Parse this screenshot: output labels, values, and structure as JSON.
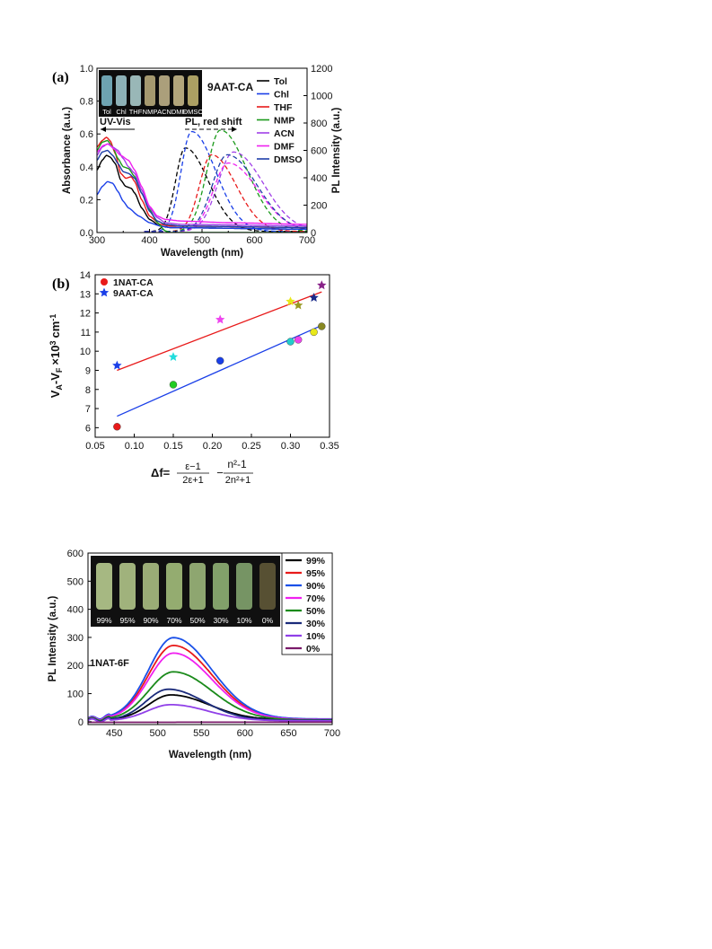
{
  "chart_data": [
    {
      "id": "a",
      "panel_label": "(a)",
      "type": "line",
      "annotation": "9AAT-CA",
      "uvvis_label": "UV-Vis",
      "pl_label": "PL, red shift",
      "xlabel": "Wavelength (nm)",
      "ylabel": "Absorbance (a.u.)",
      "y2label": "PL Intensity (a.u.)",
      "xlim": [
        300,
        700
      ],
      "ylim": [
        0,
        1.0
      ],
      "y2lim": [
        0,
        1200
      ],
      "xticks": [
        "300",
        "400",
        "500",
        "600",
        "700"
      ],
      "yticks": [
        "0.0",
        "0.2",
        "0.4",
        "0.6",
        "0.8",
        "1.0"
      ],
      "y2ticks": [
        "0",
        "200",
        "400",
        "600",
        "800",
        "1000",
        "1200"
      ],
      "inset_labels": [
        "Tol",
        "Chl",
        "THF",
        "NMP",
        "ACN",
        "DMF",
        "DMSO"
      ],
      "series": [
        {
          "name": "Tol",
          "color": "#000000",
          "abs": [
            [
              300,
              0.38
            ],
            [
              310,
              0.44
            ],
            [
              318,
              0.47
            ],
            [
              325,
              0.46
            ],
            [
              335,
              0.42
            ],
            [
              345,
              0.32
            ],
            [
              355,
              0.28
            ],
            [
              365,
              0.27
            ],
            [
              372,
              0.24
            ],
            [
              385,
              0.15
            ],
            [
              400,
              0.08
            ],
            [
              420,
              0.04
            ],
            [
              440,
              0.03
            ],
            [
              700,
              0.02
            ]
          ],
          "pl_peak": [
            468,
            610
          ],
          "pl_w": [
            26,
            62
          ],
          "pl_start": 400
        },
        {
          "name": "Chl",
          "color": "#1a3fe8",
          "abs": [
            [
              300,
              0.23
            ],
            [
              310,
              0.28
            ],
            [
              320,
              0.31
            ],
            [
              330,
              0.3
            ],
            [
              340,
              0.25
            ],
            [
              350,
              0.19
            ],
            [
              360,
              0.15
            ],
            [
              380,
              0.1
            ],
            [
              400,
              0.06
            ],
            [
              420,
              0.04
            ],
            [
              440,
              0.03
            ],
            [
              700,
              0.02
            ]
          ],
          "pl_peak": [
            480,
            730
          ],
          "pl_w": [
            28,
            65
          ],
          "pl_start": 400
        },
        {
          "name": "THF",
          "color": "#e81a1a",
          "abs": [
            [
              300,
              0.52
            ],
            [
              310,
              0.56
            ],
            [
              318,
              0.58
            ],
            [
              325,
              0.56
            ],
            [
              335,
              0.48
            ],
            [
              345,
              0.36
            ],
            [
              355,
              0.33
            ],
            [
              365,
              0.34
            ],
            [
              372,
              0.31
            ],
            [
              385,
              0.2
            ],
            [
              400,
              0.1
            ],
            [
              420,
              0.05
            ],
            [
              440,
              0.04
            ],
            [
              700,
              0.03
            ]
          ],
          "pl_peak": [
            518,
            560
          ],
          "pl_w": [
            32,
            66
          ],
          "pl_start": 405
        },
        {
          "name": "NMP",
          "color": "#1a9a1a",
          "abs": [
            [
              300,
              0.5
            ],
            [
              310,
              0.55
            ],
            [
              320,
              0.56
            ],
            [
              330,
              0.52
            ],
            [
              340,
              0.45
            ],
            [
              350,
              0.4
            ],
            [
              360,
              0.39
            ],
            [
              372,
              0.34
            ],
            [
              385,
              0.24
            ],
            [
              400,
              0.14
            ],
            [
              415,
              0.06
            ],
            [
              430,
              0.01
            ],
            [
              440,
              0.0
            ]
          ],
          "pl_peak": [
            535,
            740
          ],
          "pl_w": [
            36,
            72
          ],
          "pl_start": 420
        },
        {
          "name": "ACN",
          "color": "#a040e8",
          "abs": [
            [
              300,
              0.47
            ],
            [
              310,
              0.52
            ],
            [
              320,
              0.54
            ],
            [
              330,
              0.52
            ],
            [
              340,
              0.5
            ],
            [
              350,
              0.45
            ],
            [
              360,
              0.4
            ],
            [
              372,
              0.36
            ],
            [
              385,
              0.26
            ],
            [
              400,
              0.15
            ],
            [
              415,
              0.09
            ],
            [
              430,
              0.06
            ],
            [
              460,
              0.05
            ],
            [
              700,
              0.04
            ]
          ],
          "pl_peak": [
            560,
            580
          ],
          "pl_w": [
            42,
            80
          ],
          "pl_start": 415
        },
        {
          "name": "DMF",
          "color": "#f020f0",
          "abs": [
            [
              300,
              0.49
            ],
            [
              312,
              0.53
            ],
            [
              322,
              0.54
            ],
            [
              332,
              0.51
            ],
            [
              345,
              0.47
            ],
            [
              360,
              0.44
            ],
            [
              372,
              0.38
            ],
            [
              385,
              0.28
            ],
            [
              400,
              0.16
            ],
            [
              415,
              0.1
            ],
            [
              430,
              0.08
            ],
            [
              460,
              0.07
            ],
            [
              550,
              0.06
            ],
            [
              700,
              0.05
            ]
          ],
          "pl_peak": [
            550,
            500
          ],
          "pl_w": [
            40,
            80
          ],
          "pl_start": 415
        },
        {
          "name": "DMSO",
          "color": "#1f3fa8",
          "abs": [
            [
              300,
              0.44
            ],
            [
              310,
              0.49
            ],
            [
              320,
              0.5
            ],
            [
              330,
              0.47
            ],
            [
              340,
              0.42
            ],
            [
              350,
              0.37
            ],
            [
              360,
              0.36
            ],
            [
              372,
              0.33
            ],
            [
              385,
              0.24
            ],
            [
              400,
              0.13
            ],
            [
              415,
              0.07
            ],
            [
              430,
              0.05
            ],
            [
              460,
              0.04
            ],
            [
              700,
              0.03
            ]
          ],
          "pl_peak": [
            548,
            560
          ],
          "pl_w": [
            40,
            80
          ],
          "pl_start": 415
        }
      ]
    },
    {
      "id": "b",
      "panel_label": "(b)",
      "type": "scatter",
      "xlim": [
        0.05,
        0.35
      ],
      "ylim": [
        5.5,
        14
      ],
      "xticks": [
        "0.05",
        "0.10",
        "0.15",
        "0.20",
        "0.25",
        "0.30",
        "0.35"
      ],
      "yticks": [
        "6",
        "7",
        "8",
        "9",
        "10",
        "11",
        "12",
        "13",
        "14"
      ],
      "ylabel_main": "V",
      "ylabel_sub_a": "A",
      "ylabel_minus": "-",
      "ylabel_sub_f": "F",
      "ylabel_times": "×10",
      "ylabel_exp": "3",
      "ylabel_cm": "cm",
      "ylabel_cmexp": "-1",
      "xlabel_prefix": "Δf=",
      "frac1_num": "ε−1",
      "frac1_den": "2ε+1",
      "frac_minus": "−",
      "frac2_num": "n²-1",
      "frac2_den": "2n²+1",
      "series": [
        {
          "name": "1NAT-CA",
          "marker": "circle",
          "line_color": "#1a3fe8",
          "points": [
            [
              0.078,
              6.05,
              "#e81a1a"
            ],
            [
              0.15,
              8.25,
              "#22cc22"
            ],
            [
              0.21,
              9.5,
              "#1a3fe8"
            ],
            [
              0.3,
              10.5,
              "#22cccc"
            ],
            [
              0.31,
              10.6,
              "#ee44ee"
            ],
            [
              0.33,
              11.0,
              "#e8e81a"
            ],
            [
              0.34,
              11.3,
              "#888822"
            ]
          ],
          "fit": [
            [
              0.078,
              6.6
            ],
            [
              0.34,
              11.35
            ]
          ]
        },
        {
          "name": "9AAT-CA",
          "marker": "star",
          "line_color": "#e81a1a",
          "points": [
            [
              0.078,
              9.25,
              "#1a3fe8"
            ],
            [
              0.15,
              9.7,
              "#22dddd"
            ],
            [
              0.21,
              11.65,
              "#ee44ee"
            ],
            [
              0.3,
              12.6,
              "#e8e81a"
            ],
            [
              0.31,
              12.4,
              "#999922"
            ],
            [
              0.33,
              12.8,
              "#1a2a8a"
            ],
            [
              0.34,
              13.45,
              "#882288"
            ]
          ],
          "fit": [
            [
              0.078,
              9.0
            ],
            [
              0.34,
              13.1
            ]
          ]
        }
      ]
    },
    {
      "id": "c",
      "type": "line",
      "annotation": "1NAT-6F",
      "xlabel": "Wavelength (nm)",
      "ylabel": "PL Intensity (a.u.)",
      "xlim": [
        420,
        700
      ],
      "ylim": [
        -10,
        600
      ],
      "xticks": [
        "450",
        "500",
        "550",
        "600",
        "650",
        "700"
      ],
      "yticks": [
        "0",
        "100",
        "200",
        "300",
        "400",
        "500",
        "600"
      ],
      "inset_labels": [
        "99%",
        "95%",
        "90%",
        "70%",
        "50%",
        "30%",
        "10%",
        "0%"
      ],
      "series": [
        {
          "name": "99%",
          "color": "#000000",
          "peak": 88,
          "center": 515,
          "wl": 36,
          "wr": 62,
          "base": 8
        },
        {
          "name": "95%",
          "color": "#e81a1a",
          "peak": 262,
          "center": 518,
          "wl": 40,
          "wr": 62,
          "base": 10
        },
        {
          "name": "90%",
          "color": "#1a50e8",
          "peak": 288,
          "center": 518,
          "wl": 40,
          "wr": 62,
          "base": 12
        },
        {
          "name": "70%",
          "color": "#f020f0",
          "peak": 235,
          "center": 518,
          "wl": 40,
          "wr": 62,
          "base": 10
        },
        {
          "name": "50%",
          "color": "#1a8a1a",
          "peak": 170,
          "center": 518,
          "wl": 40,
          "wr": 62,
          "base": 8
        },
        {
          "name": "30%",
          "color": "#1a2a7a",
          "peak": 110,
          "center": 512,
          "wl": 36,
          "wr": 58,
          "base": 6
        },
        {
          "name": "10%",
          "color": "#9040e8",
          "peak": 57,
          "center": 515,
          "wl": 38,
          "wr": 60,
          "base": 4
        },
        {
          "name": "0%",
          "color": "#7a1a6a",
          "peak": 0,
          "center": 515,
          "wl": 40,
          "wr": 60,
          "base": -2
        }
      ]
    }
  ]
}
